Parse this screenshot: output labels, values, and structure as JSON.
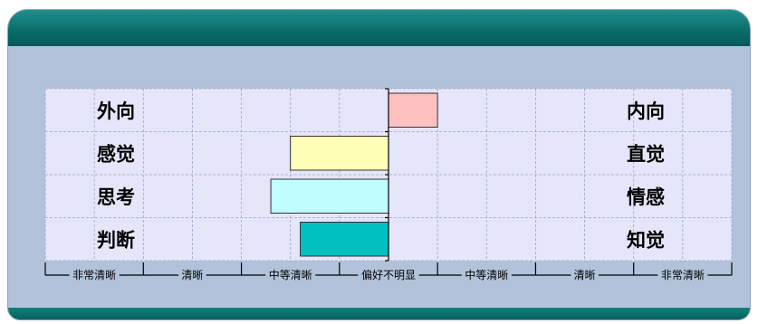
{
  "chart_data": {
    "type": "bar",
    "orientation": "horizontal",
    "diverging": true,
    "dimensions": [
      {
        "left": "外向",
        "right": "内向",
        "value": 1.0,
        "color": "#ffc0c0"
      },
      {
        "left": "感觉",
        "right": "直觉",
        "value": -2.0,
        "color": "#ffffb8"
      },
      {
        "left": "思考",
        "right": "情感",
        "value": -2.4,
        "color": "#c0ffff"
      },
      {
        "left": "判断",
        "right": "知觉",
        "value": -1.8,
        "color": "#00c0c0"
      }
    ],
    "xlim": [
      -7,
      7
    ],
    "scale_labels": [
      "非常清晰",
      "清晰",
      "中等清晰",
      "偏好不明显",
      "中等清晰",
      "清晰",
      "非常清晰"
    ],
    "grid": true
  },
  "colors": {
    "header": "#0b6e6b",
    "panel": "#b2c2da",
    "plot_bg": "#e6e6fa",
    "grid": "#9aa6c8"
  }
}
